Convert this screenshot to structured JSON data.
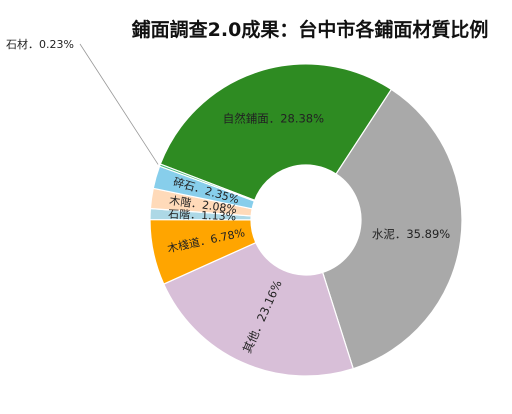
{
  "chart_data": {
    "type": "pie",
    "title": "鋪面調查2.0成果：台中市各鋪面材質比例",
    "legend": "none",
    "slices": [
      {
        "label": "自然鋪面",
        "value": 28.38,
        "text": "自然鋪面．28.38%",
        "color": "#2e8b22"
      },
      {
        "label": "水泥",
        "value": 35.89,
        "text": "水泥．35.89%",
        "color": "#a9a9a9"
      },
      {
        "label": "其他",
        "value": 23.16,
        "text": "其他．23.16%",
        "color": "#d8bfd8"
      },
      {
        "label": "木棧道",
        "value": 6.78,
        "text": "木棧道．6.78%",
        "color": "#ffa500"
      },
      {
        "label": "石階",
        "value": 1.13,
        "text": "石階．1.13%",
        "color": "#add8e6"
      },
      {
        "label": "木階",
        "value": 2.08,
        "text": "木階．2.08%",
        "color": "#ffdab9"
      },
      {
        "label": "碎石",
        "value": 2.35,
        "text": "碎石．2.35%",
        "color": "#87ceeb"
      },
      {
        "label": "石材",
        "value": 0.23,
        "text": "石材．0.23%",
        "color": "#3cb371"
      }
    ]
  }
}
